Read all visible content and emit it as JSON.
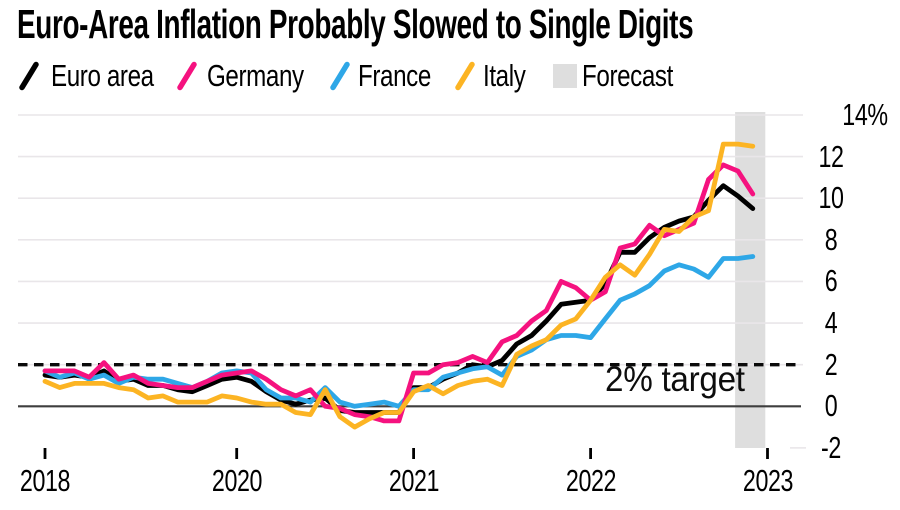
{
  "title": "Euro-Area Inflation Probably Slowed to Single Digits",
  "legend": [
    {
      "label": "Euro area",
      "color": "#000000",
      "icon": "slash"
    },
    {
      "label": "Germany",
      "color": "#f5127f",
      "icon": "slash"
    },
    {
      "label": "France",
      "color": "#2ea7e7",
      "icon": "slash"
    },
    {
      "label": "Italy",
      "color": "#fcb423",
      "icon": "slash"
    },
    {
      "label": "Forecast",
      "color": "#dedede",
      "icon": "box"
    }
  ],
  "chart_data": {
    "type": "line",
    "title": "Euro-Area Inflation Probably Slowed to Single Digits",
    "x_unit": "month",
    "x_start": "2018-12",
    "x_frequency": "monthly",
    "ylim": [
      -2,
      14
    ],
    "grid": "horizontal",
    "legend_position": "top-left",
    "y_ticks": [
      {
        "value": 14,
        "label": "14%"
      },
      {
        "value": 12,
        "label": "12"
      },
      {
        "value": 10,
        "label": "10"
      },
      {
        "value": 8,
        "label": "8"
      },
      {
        "value": 6,
        "label": "6"
      },
      {
        "value": 4,
        "label": "4"
      },
      {
        "value": 2,
        "label": "2"
      },
      {
        "value": 0,
        "label": "0"
      },
      {
        "value": -2,
        "label": "-2"
      }
    ],
    "x_ticks": [
      {
        "label": "2018",
        "month": 0
      },
      {
        "label": "2020",
        "month": 13
      },
      {
        "label": "2021",
        "month": 25
      },
      {
        "label": "2022",
        "month": 37
      },
      {
        "label": "2023",
        "month": 49
      }
    ],
    "target_line": {
      "value": 2,
      "label": "2% target"
    },
    "forecast_band": {
      "label": "Forecast",
      "start_month": 46.8,
      "end_month": 48.85
    },
    "colors": {
      "grid": "#e9e6e9",
      "zero_axis": "#3e3e3e",
      "target_dash": "#0a0a0a",
      "forecast_band": "#dedede",
      "tick": "#000000"
    },
    "series": [
      {
        "name": "Euro area",
        "color": "#000000",
        "values": [
          1.5,
          1.4,
          1.5,
          1.4,
          1.7,
          1.2,
          1.3,
          1.0,
          1.0,
          0.8,
          0.7,
          1.0,
          1.3,
          1.4,
          1.2,
          0.7,
          0.3,
          0.1,
          0.3,
          0.4,
          -0.2,
          -0.3,
          -0.3,
          -0.3,
          -0.3,
          0.9,
          0.9,
          1.3,
          1.6,
          2.0,
          1.9,
          2.2,
          3.0,
          3.4,
          4.1,
          4.9,
          5.0,
          5.1,
          5.9,
          7.4,
          7.4,
          8.1,
          8.6,
          8.9,
          9.1,
          9.9,
          10.6,
          10.1,
          9.5
        ]
      },
      {
        "name": "France",
        "color": "#2ea7e7",
        "values": [
          1.7,
          1.4,
          1.6,
          1.3,
          1.5,
          1.1,
          1.4,
          1.3,
          1.3,
          1.1,
          0.9,
          1.2,
          1.6,
          1.7,
          1.6,
          0.8,
          0.4,
          0.4,
          0.2,
          0.9,
          0.2,
          0.0,
          0.1,
          0.2,
          0.0,
          0.8,
          0.8,
          1.4,
          1.6,
          1.8,
          1.9,
          1.5,
          2.4,
          2.7,
          3.2,
          3.4,
          3.4,
          3.3,
          4.2,
          5.1,
          5.4,
          5.8,
          6.5,
          6.8,
          6.6,
          6.2,
          7.1,
          7.1,
          7.2
        ]
      },
      {
        "name": "Germany",
        "color": "#f5127f",
        "values": [
          1.7,
          1.7,
          1.7,
          1.4,
          2.1,
          1.3,
          1.5,
          1.1,
          1.0,
          0.9,
          0.9,
          1.2,
          1.5,
          1.6,
          1.7,
          1.3,
          0.8,
          0.5,
          0.8,
          0.0,
          -0.1,
          -0.4,
          -0.5,
          -0.7,
          -0.7,
          1.6,
          1.6,
          2.0,
          2.1,
          2.4,
          2.1,
          3.1,
          3.4,
          4.1,
          4.6,
          6.0,
          5.7,
          5.1,
          5.5,
          7.6,
          7.8,
          8.7,
          8.2,
          8.5,
          8.8,
          10.9,
          11.6,
          11.3,
          10.2
        ]
      },
      {
        "name": "Italy",
        "color": "#fcb423",
        "values": [
          1.2,
          0.9,
          1.1,
          1.1,
          1.1,
          0.9,
          0.8,
          0.4,
          0.5,
          0.2,
          0.2,
          0.2,
          0.5,
          0.4,
          0.2,
          0.1,
          0.1,
          -0.3,
          -0.4,
          0.8,
          -0.5,
          -1.0,
          -0.6,
          -0.3,
          -0.3,
          0.7,
          1.0,
          0.6,
          1.0,
          1.2,
          1.3,
          1.0,
          2.5,
          2.9,
          3.2,
          3.9,
          4.2,
          5.1,
          6.2,
          6.8,
          6.3,
          7.3,
          8.5,
          8.4,
          9.1,
          9.4,
          12.6,
          12.6,
          12.5
        ]
      }
    ]
  }
}
